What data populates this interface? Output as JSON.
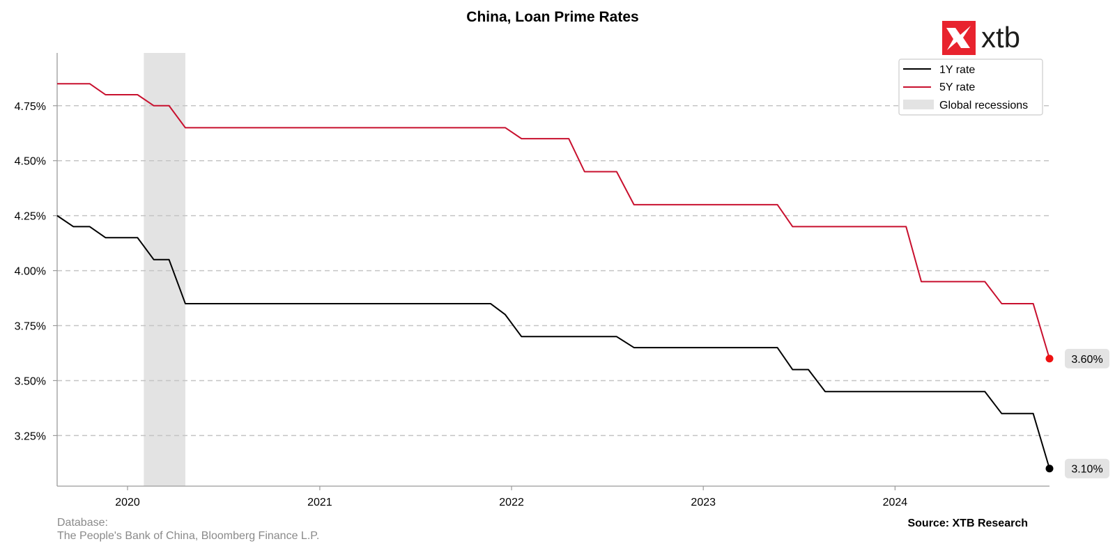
{
  "chart_data": {
    "type": "line",
    "title": "China, Loan Prime Rates",
    "y_ticks": [
      3.25,
      3.5,
      3.75,
      4.0,
      4.25,
      4.5,
      4.75
    ],
    "y_tick_labels": [
      "3.25%",
      "3.50%",
      "3.75%",
      "4.00%",
      "4.25%",
      "4.50%",
      "4.75%"
    ],
    "ylim": [
      3.02,
      4.99
    ],
    "x_ticks": [
      "2020-01-01",
      "2021-01-01",
      "2022-01-01",
      "2023-01-01",
      "2024-01-01"
    ],
    "x_tick_labels": [
      "2020",
      "2021",
      "2022",
      "2023",
      "2024"
    ],
    "xlim": [
      "2019-08-20",
      "2024-10-21"
    ],
    "grid": "horizontal dashed",
    "legend_placement": "top-right",
    "recessions": [
      {
        "name": "Global recessions",
        "start": "2020-02-01",
        "end": "2020-04-20",
        "color": "#e3e3e3"
      }
    ],
    "series": [
      {
        "name": "1Y rate",
        "color": "#000000",
        "end_marker_color": "#000000",
        "end_label": "3.10%",
        "points": [
          [
            "2019-08-20",
            4.25
          ],
          [
            "2019-09-20",
            4.2
          ],
          [
            "2019-10-21",
            4.2
          ],
          [
            "2019-11-20",
            4.15
          ],
          [
            "2019-12-20",
            4.15
          ],
          [
            "2020-01-20",
            4.15
          ],
          [
            "2020-02-20",
            4.05
          ],
          [
            "2020-03-20",
            4.05
          ],
          [
            "2020-04-20",
            3.85
          ],
          [
            "2020-05-20",
            3.85
          ],
          [
            "2020-06-22",
            3.85
          ],
          [
            "2020-07-20",
            3.85
          ],
          [
            "2020-08-20",
            3.85
          ],
          [
            "2020-09-21",
            3.85
          ],
          [
            "2020-10-20",
            3.85
          ],
          [
            "2020-11-20",
            3.85
          ],
          [
            "2020-12-21",
            3.85
          ],
          [
            "2021-01-20",
            3.85
          ],
          [
            "2021-02-20",
            3.85
          ],
          [
            "2021-03-22",
            3.85
          ],
          [
            "2021-04-20",
            3.85
          ],
          [
            "2021-05-20",
            3.85
          ],
          [
            "2021-06-21",
            3.85
          ],
          [
            "2021-07-20",
            3.85
          ],
          [
            "2021-08-20",
            3.85
          ],
          [
            "2021-09-22",
            3.85
          ],
          [
            "2021-10-20",
            3.85
          ],
          [
            "2021-11-22",
            3.85
          ],
          [
            "2021-12-20",
            3.8
          ],
          [
            "2022-01-20",
            3.7
          ],
          [
            "2022-02-21",
            3.7
          ],
          [
            "2022-03-21",
            3.7
          ],
          [
            "2022-04-20",
            3.7
          ],
          [
            "2022-05-20",
            3.7
          ],
          [
            "2022-06-20",
            3.7
          ],
          [
            "2022-07-20",
            3.7
          ],
          [
            "2022-08-22",
            3.65
          ],
          [
            "2022-09-20",
            3.65
          ],
          [
            "2022-10-20",
            3.65
          ],
          [
            "2022-11-21",
            3.65
          ],
          [
            "2022-12-20",
            3.65
          ],
          [
            "2023-01-20",
            3.65
          ],
          [
            "2023-02-20",
            3.65
          ],
          [
            "2023-03-20",
            3.65
          ],
          [
            "2023-04-20",
            3.65
          ],
          [
            "2023-05-22",
            3.65
          ],
          [
            "2023-06-20",
            3.55
          ],
          [
            "2023-07-20",
            3.55
          ],
          [
            "2023-08-21",
            3.45
          ],
          [
            "2023-09-20",
            3.45
          ],
          [
            "2023-10-20",
            3.45
          ],
          [
            "2023-11-20",
            3.45
          ],
          [
            "2023-12-20",
            3.45
          ],
          [
            "2024-01-22",
            3.45
          ],
          [
            "2024-02-20",
            3.45
          ],
          [
            "2024-03-20",
            3.45
          ],
          [
            "2024-04-22",
            3.45
          ],
          [
            "2024-05-20",
            3.45
          ],
          [
            "2024-06-20",
            3.45
          ],
          [
            "2024-07-22",
            3.35
          ],
          [
            "2024-08-20",
            3.35
          ],
          [
            "2024-09-20",
            3.35
          ],
          [
            "2024-10-21",
            3.1
          ]
        ]
      },
      {
        "name": "5Y rate",
        "color": "#c8102e",
        "end_marker_color": "#ee1111",
        "end_label": "3.60%",
        "points": [
          [
            "2019-08-20",
            4.85
          ],
          [
            "2019-09-20",
            4.85
          ],
          [
            "2019-10-21",
            4.85
          ],
          [
            "2019-11-20",
            4.8
          ],
          [
            "2019-12-20",
            4.8
          ],
          [
            "2020-01-20",
            4.8
          ],
          [
            "2020-02-20",
            4.75
          ],
          [
            "2020-03-20",
            4.75
          ],
          [
            "2020-04-20",
            4.65
          ],
          [
            "2020-05-20",
            4.65
          ],
          [
            "2020-06-22",
            4.65
          ],
          [
            "2020-07-20",
            4.65
          ],
          [
            "2020-08-20",
            4.65
          ],
          [
            "2020-09-21",
            4.65
          ],
          [
            "2020-10-20",
            4.65
          ],
          [
            "2020-11-20",
            4.65
          ],
          [
            "2020-12-21",
            4.65
          ],
          [
            "2021-01-20",
            4.65
          ],
          [
            "2021-02-20",
            4.65
          ],
          [
            "2021-03-22",
            4.65
          ],
          [
            "2021-04-20",
            4.65
          ],
          [
            "2021-05-20",
            4.65
          ],
          [
            "2021-06-21",
            4.65
          ],
          [
            "2021-07-20",
            4.65
          ],
          [
            "2021-08-20",
            4.65
          ],
          [
            "2021-09-22",
            4.65
          ],
          [
            "2021-10-20",
            4.65
          ],
          [
            "2021-11-22",
            4.65
          ],
          [
            "2021-12-20",
            4.65
          ],
          [
            "2022-01-20",
            4.6
          ],
          [
            "2022-02-21",
            4.6
          ],
          [
            "2022-03-21",
            4.6
          ],
          [
            "2022-04-20",
            4.6
          ],
          [
            "2022-05-20",
            4.45
          ],
          [
            "2022-06-20",
            4.45
          ],
          [
            "2022-07-20",
            4.45
          ],
          [
            "2022-08-22",
            4.3
          ],
          [
            "2022-09-20",
            4.3
          ],
          [
            "2022-10-20",
            4.3
          ],
          [
            "2022-11-21",
            4.3
          ],
          [
            "2022-12-20",
            4.3
          ],
          [
            "2023-01-20",
            4.3
          ],
          [
            "2023-02-20",
            4.3
          ],
          [
            "2023-03-20",
            4.3
          ],
          [
            "2023-04-20",
            4.3
          ],
          [
            "2023-05-22",
            4.3
          ],
          [
            "2023-06-20",
            4.2
          ],
          [
            "2023-07-20",
            4.2
          ],
          [
            "2023-08-21",
            4.2
          ],
          [
            "2023-09-20",
            4.2
          ],
          [
            "2023-10-20",
            4.2
          ],
          [
            "2023-11-20",
            4.2
          ],
          [
            "2023-12-20",
            4.2
          ],
          [
            "2024-01-22",
            4.2
          ],
          [
            "2024-02-20",
            3.95
          ],
          [
            "2024-03-20",
            3.95
          ],
          [
            "2024-04-22",
            3.95
          ],
          [
            "2024-05-20",
            3.95
          ],
          [
            "2024-06-20",
            3.95
          ],
          [
            "2024-07-22",
            3.85
          ],
          [
            "2024-08-20",
            3.85
          ],
          [
            "2024-09-20",
            3.85
          ],
          [
            "2024-10-21",
            3.6
          ]
        ]
      }
    ]
  },
  "logo": {
    "text": "xtb",
    "brand_color": "#e8232e"
  },
  "footer": {
    "database_label": "Database:",
    "database_sources": "The People's Bank of China, Bloomberg Finance L.P.",
    "source": "Source: XTB Research"
  }
}
